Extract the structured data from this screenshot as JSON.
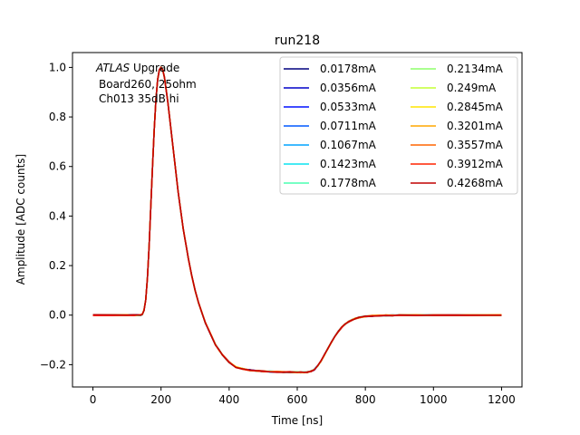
{
  "chart_data": {
    "type": "line",
    "title": "run218",
    "xlabel": "Time [ns]",
    "ylabel": "Amplitude [ADC counts]",
    "xlim": [
      -60,
      1260
    ],
    "ylim": [
      -0.29,
      1.06
    ],
    "xticks": [
      0,
      200,
      400,
      600,
      800,
      1000,
      1200
    ],
    "xtick_labels": [
      "0",
      "200",
      "400",
      "600",
      "800",
      "1000",
      "1200"
    ],
    "yticks": [
      -0.2,
      0.0,
      0.2,
      0.4,
      0.6,
      0.8,
      1.0
    ],
    "ytick_labels": [
      "−0.2",
      "0.0",
      "0.2",
      "0.4",
      "0.6",
      "0.8",
      "1.0"
    ],
    "grid": false,
    "legend_position": "upper right",
    "annotation": {
      "line1_italic": "ATLAS",
      "line1_rest": " Upgrade",
      "line2": "Board260, 25ohm",
      "line3": "Ch013 35dB hi"
    },
    "pulse_x": [
      0,
      60,
      100,
      120,
      130,
      140,
      145,
      150,
      155,
      160,
      165,
      170,
      175,
      180,
      185,
      190,
      195,
      200,
      205,
      210,
      215,
      220,
      225,
      230,
      235,
      240,
      245,
      250,
      255,
      260,
      265,
      270,
      275,
      280,
      290,
      300,
      310,
      320,
      330,
      340,
      350,
      360,
      370,
      380,
      400,
      420,
      440,
      460,
      480,
      500,
      520,
      540,
      560,
      580,
      600,
      610,
      620,
      630,
      640,
      650,
      660,
      670,
      680,
      690,
      700,
      710,
      720,
      730,
      740,
      750,
      760,
      770,
      780,
      800,
      820,
      840,
      860,
      880,
      900,
      950,
      1000,
      1100,
      1200
    ],
    "pulse_y": [
      0.0,
      0.0,
      0.0,
      0.0,
      0.0,
      0.0,
      0.003,
      0.02,
      0.06,
      0.15,
      0.28,
      0.44,
      0.6,
      0.75,
      0.87,
      0.95,
      0.99,
      1.0,
      0.99,
      0.96,
      0.91,
      0.86,
      0.8,
      0.74,
      0.68,
      0.62,
      0.56,
      0.5,
      0.45,
      0.4,
      0.35,
      0.31,
      0.27,
      0.23,
      0.16,
      0.1,
      0.05,
      0.01,
      -0.03,
      -0.06,
      -0.09,
      -0.12,
      -0.14,
      -0.16,
      -0.19,
      -0.21,
      -0.217,
      -0.222,
      -0.225,
      -0.227,
      -0.228,
      -0.229,
      -0.23,
      -0.23,
      -0.23,
      -0.231,
      -0.231,
      -0.23,
      -0.227,
      -0.22,
      -0.205,
      -0.185,
      -0.16,
      -0.135,
      -0.11,
      -0.087,
      -0.067,
      -0.05,
      -0.037,
      -0.027,
      -0.02,
      -0.014,
      -0.01,
      -0.005,
      -0.003,
      -0.002,
      -0.001,
      -0.001,
      0.0,
      0.0,
      0.0,
      0.0,
      0.0
    ],
    "series": [
      {
        "name": "0.0178mA",
        "color": "#00007f"
      },
      {
        "name": "0.0356mA",
        "color": "#0000c8"
      },
      {
        "name": "0.0533mA",
        "color": "#0010ff"
      },
      {
        "name": "0.0711mA",
        "color": "#0058ff"
      },
      {
        "name": "0.1067mA",
        "color": "#00a4ff"
      },
      {
        "name": "0.1423mA",
        "color": "#0ae4f0"
      },
      {
        "name": "0.1778mA",
        "color": "#4affb2"
      },
      {
        "name": "0.2134mA",
        "color": "#8dff6a"
      },
      {
        "name": "0.249mA",
        "color": "#c4ff33"
      },
      {
        "name": "0.2845mA",
        "color": "#ffe500"
      },
      {
        "name": "0.3201mA",
        "color": "#ffa700"
      },
      {
        "name": "0.3557mA",
        "color": "#ff6500"
      },
      {
        "name": "0.3912mA",
        "color": "#ff2300"
      },
      {
        "name": "0.4268mA",
        "color": "#c00000"
      }
    ]
  }
}
